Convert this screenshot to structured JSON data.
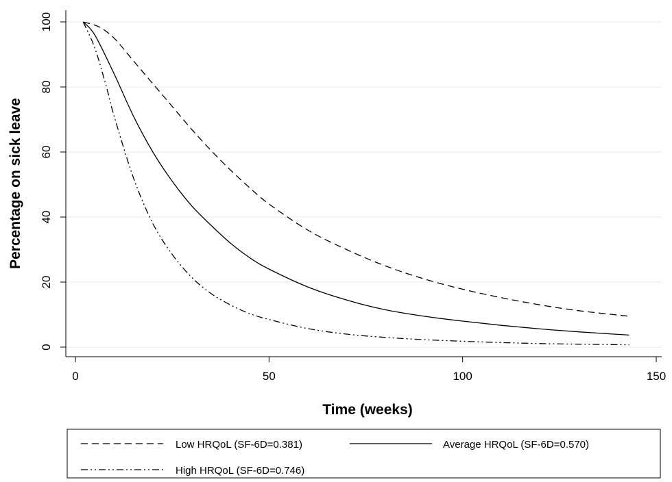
{
  "chart_data": {
    "type": "line",
    "title": "",
    "xlabel": "Time (weeks)",
    "ylabel": "Percentage on sick leave",
    "xlim": [
      0,
      150
    ],
    "ylim": [
      0,
      100
    ],
    "xticks": [
      0,
      50,
      100,
      150
    ],
    "yticks": [
      0,
      20,
      40,
      60,
      80,
      100
    ],
    "grid": true,
    "legend_position": "bottom",
    "series": [
      {
        "name": "Low HRQoL (SF-6D=0.381)",
        "style": "dashed",
        "color": "#000000",
        "x": [
          2,
          6,
          10,
          15,
          20,
          25,
          30,
          35,
          40,
          45,
          50,
          60,
          70,
          80,
          90,
          100,
          110,
          120,
          130,
          143
        ],
        "y": [
          100,
          98.5,
          95,
          88,
          81,
          74,
          67,
          60.5,
          54.5,
          49,
          44,
          36,
          30,
          25,
          21,
          17.8,
          15.2,
          13,
          11.2,
          9.5
        ]
      },
      {
        "name": "Average HRQoL (SF-6D=0.570)",
        "style": "solid",
        "color": "#000000",
        "x": [
          2,
          5,
          10,
          15,
          20,
          25,
          30,
          35,
          40,
          45,
          50,
          60,
          70,
          80,
          90,
          100,
          110,
          120,
          130,
          143
        ],
        "y": [
          100,
          96,
          84,
          71,
          60,
          51,
          43.5,
          37.5,
          32,
          27.5,
          24,
          18.5,
          14.5,
          11.5,
          9.5,
          8,
          6.7,
          5.6,
          4.7,
          3.7
        ]
      },
      {
        "name": "High HRQoL (SF-6D=0.746)",
        "style": "dash-dot-dot",
        "color": "#000000",
        "x": [
          2,
          5,
          8,
          10,
          15,
          20,
          25,
          30,
          35,
          40,
          45,
          50,
          60,
          70,
          80,
          90,
          100,
          110,
          120,
          130,
          143
        ],
        "y": [
          100,
          92,
          80,
          71,
          52,
          38,
          28.5,
          21.5,
          16.5,
          13,
          10.3,
          8.5,
          5.7,
          4,
          3,
          2.3,
          1.8,
          1.4,
          1.1,
          0.9,
          0.7
        ]
      }
    ]
  }
}
